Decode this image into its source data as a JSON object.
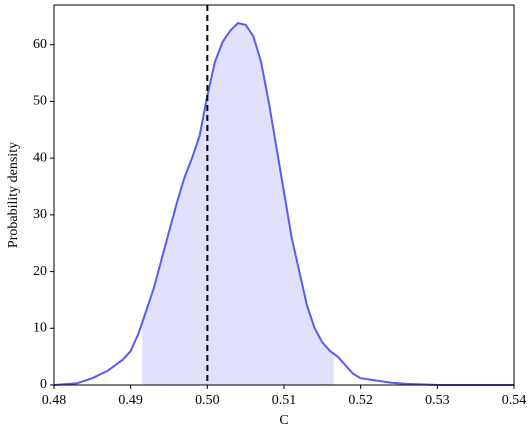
{
  "chart_data": {
    "type": "line",
    "x_label": "C",
    "y_label": "Probability density",
    "x": [
      0.48,
      0.483,
      0.485,
      0.487,
      0.489,
      0.49,
      0.491,
      0.492,
      0.493,
      0.494,
      0.495,
      0.496,
      0.497,
      0.498,
      0.499,
      0.5,
      0.501,
      0.502,
      0.503,
      0.504,
      0.505,
      0.506,
      0.507,
      0.508,
      0.509,
      0.51,
      0.511,
      0.512,
      0.513,
      0.514,
      0.515,
      0.516,
      0.517,
      0.518,
      0.519,
      0.52,
      0.522,
      0.524,
      0.526,
      0.528,
      0.53,
      0.54
    ],
    "series": [
      {
        "color": "#5b5bef",
        "fill": "#e1e1fb",
        "values": [
          0,
          0.3,
          1.2,
          2.5,
          4.5,
          6,
          9,
          13,
          17,
          22,
          27,
          32,
          36.5,
          40,
          44,
          51,
          57,
          60.5,
          62.5,
          63.8,
          63.5,
          61.5,
          57,
          50,
          42,
          34,
          26,
          20,
          14,
          10,
          7.5,
          6,
          5,
          3.5,
          2,
          1.2,
          0.8,
          0.4,
          0.2,
          0.1,
          0,
          0
        ]
      }
    ],
    "interval": [
      0.4915,
      0.5165
    ],
    "reference_x": 0.5,
    "xlim": [
      0.48,
      0.54
    ],
    "xticks": [
      0.48,
      0.49,
      {
        "value": 0.5,
        "label": "0.50"
      },
      0.51,
      0.52,
      0.53,
      0.54
    ],
    "ylim": [
      0,
      67
    ],
    "yticks": [
      0,
      10,
      20,
      30,
      40,
      50,
      60
    ]
  }
}
